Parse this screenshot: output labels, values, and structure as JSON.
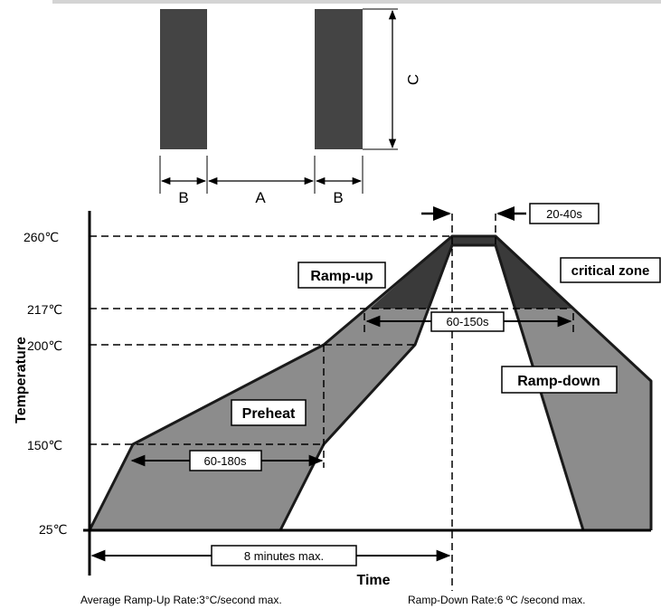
{
  "pad": {
    "label_a": "A",
    "label_b_left": "B",
    "label_b_right": "B",
    "label_c": "C"
  },
  "profile": {
    "y_axis_label": "Temperature",
    "x_axis_label": "Time",
    "temps": {
      "t260": "260℃",
      "t217": "217℃",
      "t200": "200℃",
      "t150": "150℃",
      "t25": "25℃"
    },
    "regions": {
      "ramp_up": "Ramp-up",
      "preheat": "Preheat",
      "critical_zone": "critical zone",
      "ramp_down": "Ramp-down"
    },
    "durations": {
      "peak": "20-40s",
      "above_liquidus": "60-150s",
      "preheat": "60-180s",
      "total": "8 minutes max."
    },
    "notes": {
      "ramp_up_rate": "Average Ramp-Up Rate:3°C/second max.",
      "ramp_down_rate": "Ramp-Down Rate:6 ºC /second max."
    },
    "colors": {
      "fill": "#8c8c8c",
      "critical": "#3a3a3a",
      "line": "#1a1a1a",
      "pad": "#444444"
    }
  }
}
